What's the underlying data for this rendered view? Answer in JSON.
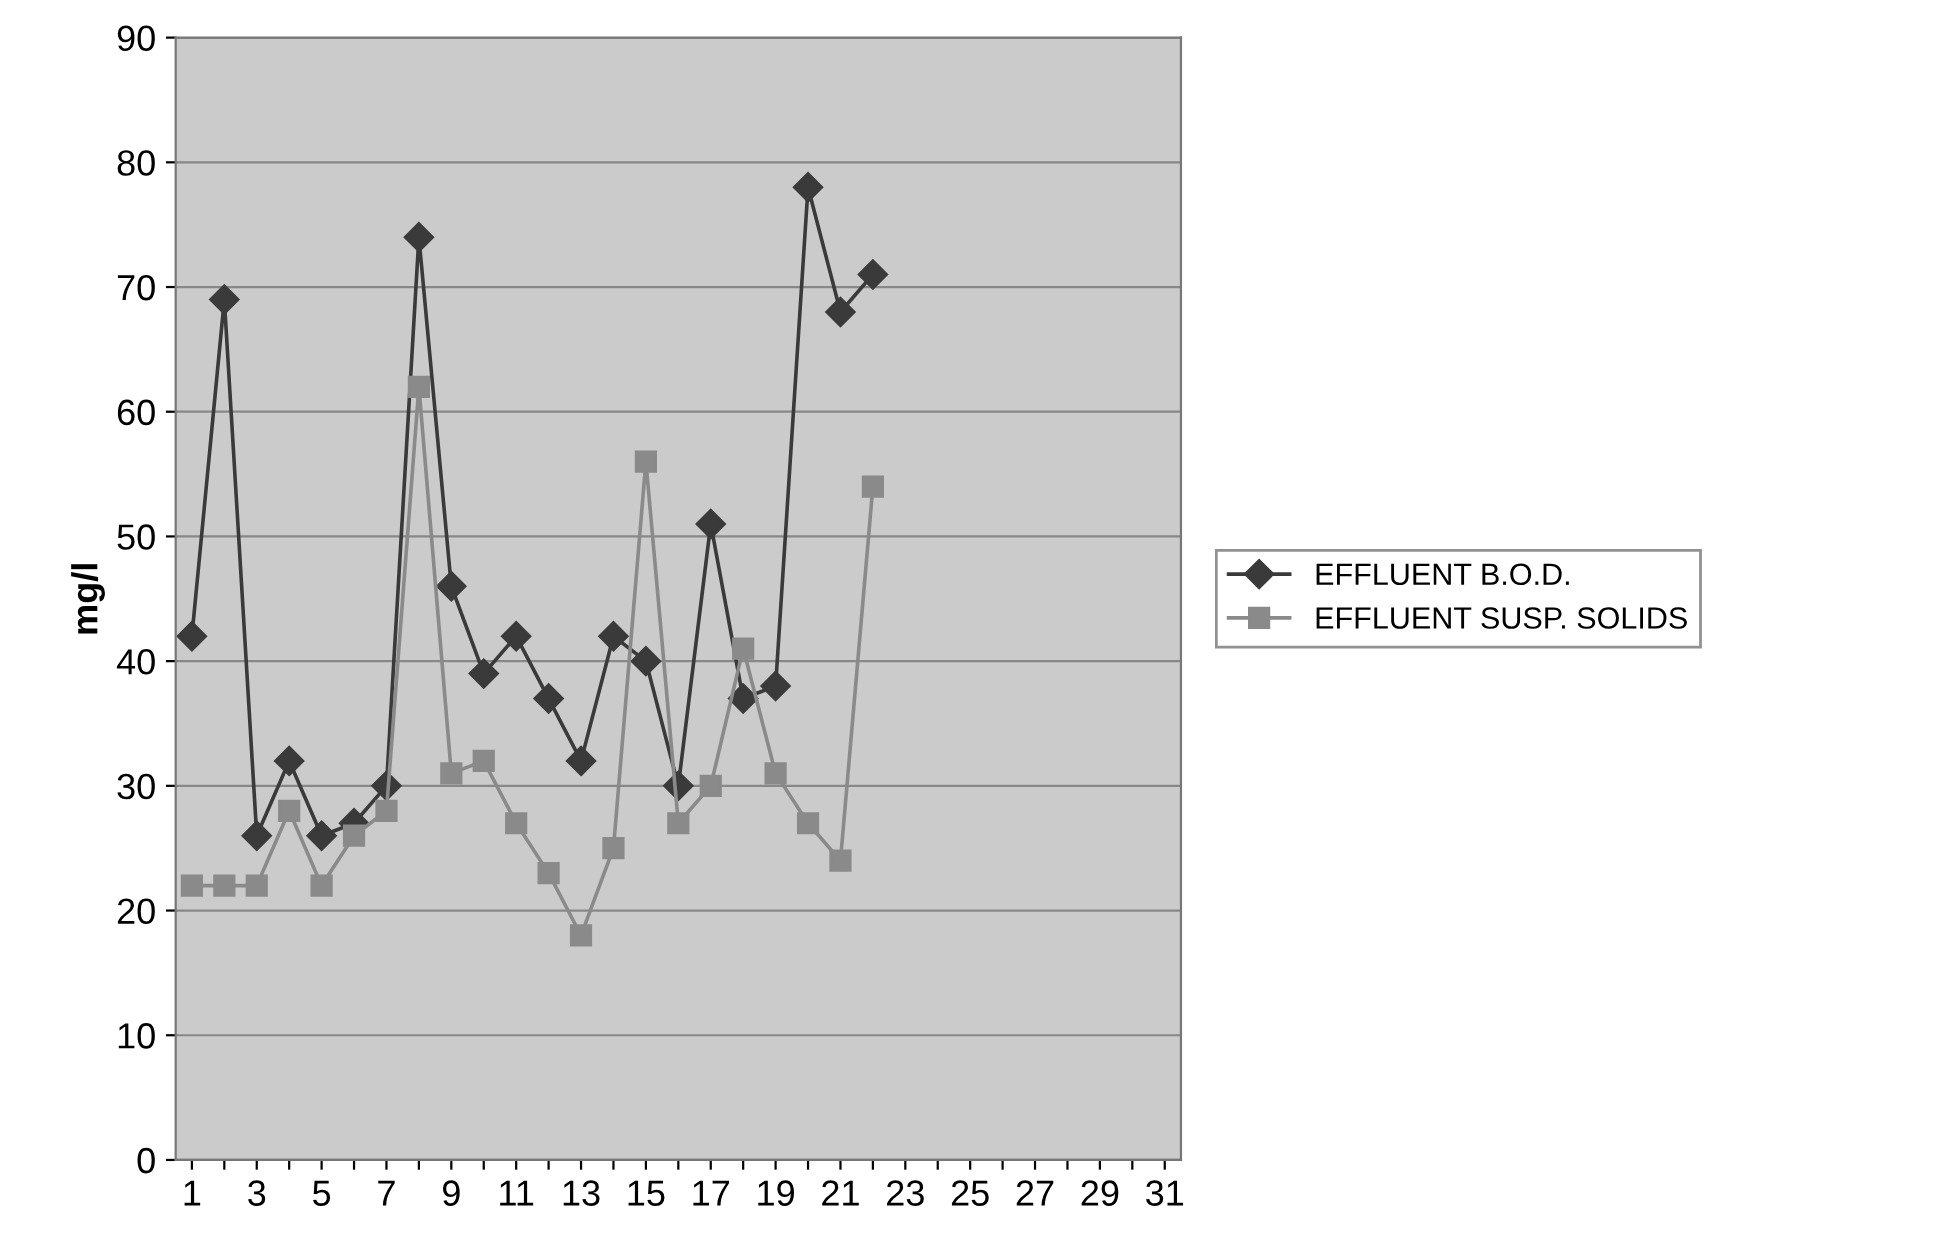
{
  "chart_data": {
    "type": "line",
    "ylabel": "mg/l",
    "categories": [
      "1",
      null,
      "3",
      null,
      "5",
      null,
      "7",
      null,
      "9",
      null,
      "11",
      null,
      "13",
      null,
      "15",
      null,
      "17",
      null,
      "19",
      null,
      "21",
      null,
      "23",
      null,
      "25",
      null,
      "27",
      null,
      "29",
      null,
      "31"
    ],
    "series": [
      {
        "name": "EFFLUENT B.O.D.",
        "color": "#3a3a3a",
        "marker": "diamond",
        "values": [
          42,
          69,
          26,
          32,
          26,
          27,
          30,
          74,
          46,
          39,
          42,
          37,
          32,
          42,
          40,
          30,
          51,
          37,
          38,
          78,
          68,
          71,
          null,
          null,
          null,
          null,
          null,
          null,
          null,
          null,
          null
        ]
      },
      {
        "name": "EFFLUENT SUSP. SOLIDS",
        "color": "#8a8a8a",
        "marker": "square",
        "values": [
          22,
          22,
          22,
          28,
          22,
          26,
          28,
          62,
          31,
          32,
          27,
          23,
          18,
          25,
          56,
          27,
          30,
          41,
          31,
          27,
          24,
          54,
          null,
          null,
          null,
          null,
          null,
          null,
          null,
          null,
          null
        ]
      }
    ],
    "ylim": [
      0,
      90
    ],
    "yticks": [
      0,
      10,
      20,
      30,
      40,
      50,
      60,
      70,
      80,
      90
    ],
    "grid": "y",
    "legend": "right",
    "line_style": "solid"
  }
}
